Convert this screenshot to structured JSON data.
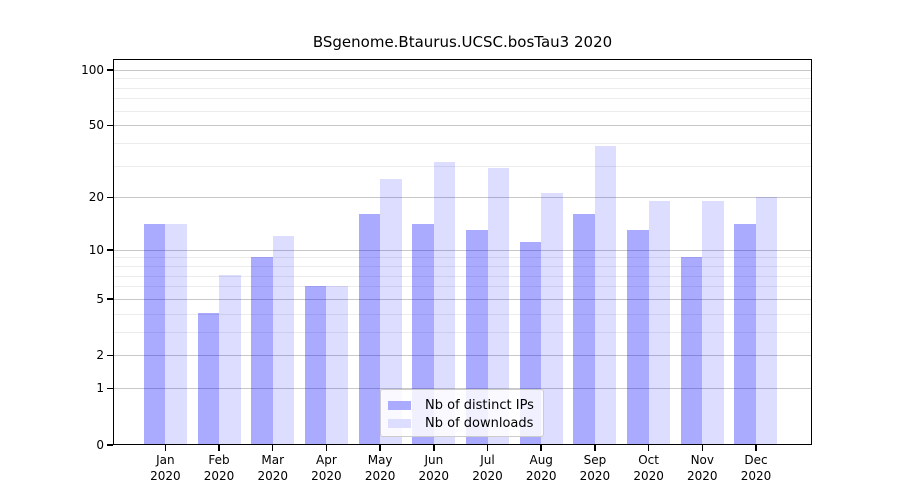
{
  "chart_data": {
    "type": "bar",
    "title": "BSgenome.Btaurus.UCSC.bosTau3 2020",
    "categories": [
      "Jan",
      "Feb",
      "Mar",
      "Apr",
      "May",
      "Jun",
      "Jul",
      "Aug",
      "Sep",
      "Oct",
      "Nov",
      "Dec"
    ],
    "category_year": "2020",
    "series": [
      {
        "name": "Nb of distinct IPs",
        "color": "rgba(0,0,255,0.333)",
        "solid_color": "#aaaaff",
        "values": [
          14,
          4,
          9,
          6,
          16,
          14,
          13,
          11,
          16,
          13,
          9,
          14
        ]
      },
      {
        "name": "Nb of downloads",
        "color": "rgba(0,0,255,0.133)",
        "solid_color": "#ddddff",
        "values": [
          14,
          7,
          12,
          6,
          25,
          31,
          29,
          21,
          38,
          19,
          19,
          20
        ]
      }
    ],
    "yscale": "log1p",
    "ylim": [
      0,
      114
    ],
    "yticks": [
      0,
      1,
      2,
      5,
      10,
      20,
      50,
      100
    ],
    "yticks_minor": [
      3,
      4,
      6,
      7,
      8,
      9,
      30,
      40,
      60,
      70,
      80,
      90
    ],
    "grid": true,
    "legend_position": "lower-center"
  },
  "colors": {
    "grid_major": "#c8c8c8",
    "grid_minor": "#ececec",
    "axis": "#000000",
    "background": "#ffffff"
  }
}
